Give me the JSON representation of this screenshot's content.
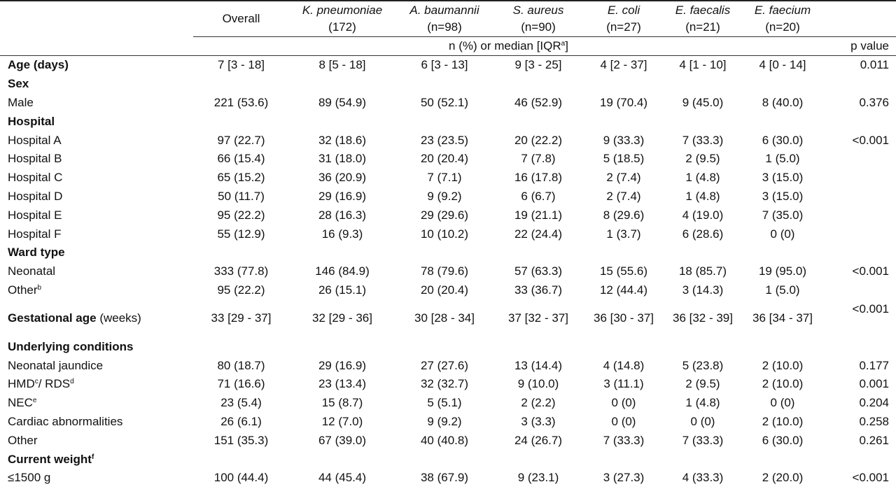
{
  "header": {
    "overall": "Overall",
    "groups": [
      {
        "species": "K. pneumoniae",
        "n": "(172)"
      },
      {
        "species": "A. baumannii",
        "n": "(n=98)"
      },
      {
        "species": "S. aureus",
        "n": "(n=90)"
      },
      {
        "species": "E. coli",
        "n": "(n=27)"
      },
      {
        "species": "E. faecalis",
        "n": "(n=21)"
      },
      {
        "species": "E. faecium",
        "n": "(n=20)"
      }
    ],
    "unit_row": "n (%) or median [IQR",
    "unit_row_sup": "a",
    "unit_row_end": "]",
    "p_value": "p value"
  },
  "rows": [
    {
      "label": "Age (days)",
      "bold": true,
      "values": [
        "7 [3 - 18]",
        "8 [5 - 18]",
        "6 [3 - 13]",
        "9 [3 - 25]",
        "4 [2 - 37]",
        "4 [1 - 10]",
        "4 [0 - 14]"
      ],
      "p": "0.011"
    },
    {
      "label": "Sex",
      "section": true
    },
    {
      "label": "Male",
      "values": [
        "221 (53.6)",
        "89 (54.9)",
        "50 (52.1)",
        "46 (52.9)",
        "19 (70.4)",
        "9 (45.0)",
        "8 (40.0)"
      ],
      "p": "0.376"
    },
    {
      "label": "Hospital",
      "section": true
    },
    {
      "label": "Hospital A",
      "values": [
        "97 (22.7)",
        "32 (18.6)",
        "23 (23.5)",
        "20 (22.2)",
        "9 (33.3)",
        "7 (33.3)",
        "6 (30.0)"
      ],
      "p": "<0.001"
    },
    {
      "label": "Hospital B",
      "values": [
        "66 (15.4)",
        "31 (18.0)",
        "20 (20.4)",
        "7 (7.8)",
        "5 (18.5)",
        "2 (9.5)",
        "1 (5.0)"
      ],
      "p": ""
    },
    {
      "label": "Hospital C",
      "values": [
        "65 (15.2)",
        "36 (20.9)",
        "7 (7.1)",
        "16 (17.8)",
        "2 (7.4)",
        "1 (4.8)",
        "3 (15.0)"
      ],
      "p": ""
    },
    {
      "label": "Hospital D",
      "values": [
        "50 (11.7)",
        "29 (16.9)",
        "9 (9.2)",
        "6 (6.7)",
        "2 (7.4)",
        "1 (4.8)",
        "3 (15.0)"
      ],
      "p": ""
    },
    {
      "label": "Hospital E",
      "values": [
        "95 (22.2)",
        "28 (16.3)",
        "29 (29.6)",
        "19 (21.1)",
        "8 (29.6)",
        "4 (19.0)",
        "7 (35.0)"
      ],
      "p": ""
    },
    {
      "label": "Hospital F",
      "values": [
        "55 (12.9)",
        "16 (9.3)",
        "10 (10.2)",
        "22 (24.4)",
        "1 (3.7)",
        "6 (28.6)",
        "0 (0)"
      ],
      "p": ""
    },
    {
      "label": "Ward type",
      "section": true
    },
    {
      "label": "Neonatal",
      "values": [
        "333 (77.8)",
        "146 (84.9)",
        "78 (79.6)",
        "57 (63.3)",
        "15 (55.6)",
        "18 (85.7)",
        "19 (95.0)"
      ],
      "p": "<0.001"
    },
    {
      "label": "Other",
      "sup": "b",
      "values": [
        "95 (22.2)",
        "26 (15.1)",
        "20 (20.4)",
        "33 (36.7)",
        "12 (44.4)",
        "3 (14.3)",
        "1 (5.0)"
      ],
      "p": ""
    },
    {
      "label": "Gestational age",
      "label_suffix": " (weeks)",
      "bold": true,
      "tall": true,
      "values": [
        "33 [29 - 37]",
        "32 [29 - 36]",
        "30 [28 - 34]",
        "37 [32 - 37]",
        "36 [30 - 37]",
        "36 [32 - 39]",
        "36 [34 - 37]"
      ],
      "p": "<0.001"
    },
    {
      "label": "Underlying conditions",
      "section": true
    },
    {
      "label": "Neonatal jaundice",
      "values": [
        "80 (18.7)",
        "29 (16.9)",
        "27 (27.6)",
        "13 (14.4)",
        "4 (14.8)",
        "5 (23.8)",
        "2 (10.0)"
      ],
      "p": "0.177"
    },
    {
      "label": "HMD",
      "sup": "c",
      "label_mid": "/ RDS",
      "sup2": "d",
      "values": [
        "71 (16.6)",
        "23 (13.4)",
        "32 (32.7)",
        "9 (10.0)",
        "3 (11.1)",
        "2 (9.5)",
        "2 (10.0)"
      ],
      "p": "0.001"
    },
    {
      "label": "NEC",
      "sup": "e",
      "values": [
        "23 (5.4)",
        "15 (8.7)",
        "5 (5.1)",
        "2 (2.2)",
        "0 (0)",
        "1 (4.8)",
        "0 (0)"
      ],
      "p": "0.204"
    },
    {
      "label": "Cardiac abnormalities",
      "values": [
        "26 (6.1)",
        "12 (7.0)",
        "9 (9.2)",
        "3 (3.3)",
        "0 (0)",
        "0 (0)",
        "2 (10.0)"
      ],
      "p": "0.258"
    },
    {
      "label": "Other",
      "values": [
        "151 (35.3)",
        "67 (39.0)",
        "40 (40.8)",
        "24 (26.7)",
        "7 (33.3)",
        "7 (33.3)",
        "6 (30.0)"
      ],
      "p": "0.261"
    },
    {
      "label": "Current weight",
      "sup": "f",
      "section": true
    },
    {
      "label": "≤1500 g",
      "values": [
        "100 (44.4)",
        "44 (45.4)",
        "38 (67.9)",
        "9 (23.1)",
        "3 (27.3)",
        "4 (33.3)",
        "2 (20.0)"
      ],
      "p": "<0.001"
    }
  ]
}
